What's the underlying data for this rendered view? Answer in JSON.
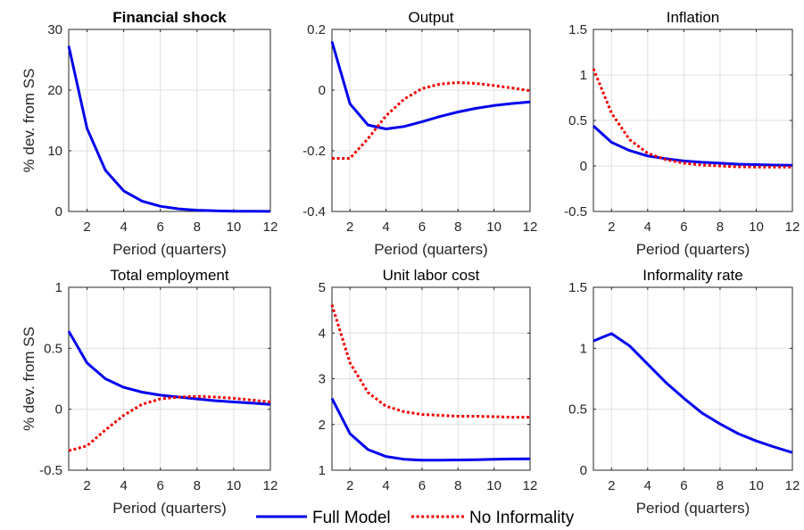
{
  "figure": {
    "legend": {
      "placement": "bottom-center",
      "entries": [
        {
          "label": "Full Model",
          "color": "#0000ee",
          "style": "solid"
        },
        {
          "label": "No Informality",
          "color": "#ee0000",
          "style": "dotted"
        }
      ]
    }
  },
  "chart_data": [
    {
      "type": "line",
      "title": "Financial shock",
      "title_bold": true,
      "xlabel": "Period (quarters)",
      "ylabel": "% dev. from SS",
      "xlim": [
        1,
        12
      ],
      "ylim": [
        0,
        30
      ],
      "xticks": [
        2,
        4,
        6,
        8,
        10,
        12
      ],
      "yticks": [
        0,
        10,
        20,
        30
      ],
      "ytick_labels": [
        "0",
        "10",
        "20",
        "30"
      ],
      "grid": true,
      "x": [
        1,
        2,
        3,
        4,
        5,
        6,
        7,
        8,
        9,
        10,
        11,
        12
      ],
      "series": [
        {
          "name": "Full Model",
          "color": "#0000ee",
          "style": "solid",
          "values": [
            27.3,
            13.7,
            6.8,
            3.4,
            1.7,
            0.85,
            0.43,
            0.21,
            0.11,
            0.05,
            0.03,
            0.01
          ]
        }
      ]
    },
    {
      "type": "line",
      "title": "Output",
      "title_bold": false,
      "xlabel": "Period (quarters)",
      "ylabel": "",
      "xlim": [
        1,
        12
      ],
      "ylim": [
        -0.4,
        0.2
      ],
      "xticks": [
        2,
        4,
        6,
        8,
        10,
        12
      ],
      "yticks": [
        -0.4,
        -0.2,
        0,
        0.2
      ],
      "ytick_labels": [
        "-0.4",
        "-0.2",
        "0",
        "0.2"
      ],
      "grid": true,
      "x": [
        1,
        2,
        3,
        4,
        5,
        6,
        7,
        8,
        9,
        10,
        11,
        12
      ],
      "series": [
        {
          "name": "Full Model",
          "color": "#0000ee",
          "style": "solid",
          "values": [
            0.16,
            -0.045,
            -0.115,
            -0.128,
            -0.12,
            -0.104,
            -0.087,
            -0.072,
            -0.06,
            -0.051,
            -0.044,
            -0.039
          ]
        },
        {
          "name": "No Informality",
          "color": "#ee0000",
          "style": "dotted",
          "values": [
            -0.225,
            -0.225,
            -0.16,
            -0.085,
            -0.03,
            0.005,
            0.02,
            0.025,
            0.022,
            0.015,
            0.007,
            -0.002
          ]
        }
      ]
    },
    {
      "type": "line",
      "title": "Inflation",
      "title_bold": false,
      "xlabel": "Period (quarters)",
      "ylabel": "",
      "xlim": [
        1,
        12
      ],
      "ylim": [
        -0.5,
        1.5
      ],
      "xticks": [
        2,
        4,
        6,
        8,
        10,
        12
      ],
      "yticks": [
        -0.5,
        0,
        0.5,
        1,
        1.5
      ],
      "ytick_labels": [
        "-0.5",
        "0",
        "0.5",
        "1",
        "1.5"
      ],
      "grid": true,
      "x": [
        1,
        2,
        3,
        4,
        5,
        6,
        7,
        8,
        9,
        10,
        11,
        12
      ],
      "series": [
        {
          "name": "Full Model",
          "color": "#0000ee",
          "style": "solid",
          "values": [
            0.44,
            0.26,
            0.17,
            0.11,
            0.08,
            0.055,
            0.04,
            0.03,
            0.02,
            0.015,
            0.01,
            0.008
          ]
        },
        {
          "name": "No Informality",
          "color": "#ee0000",
          "style": "dotted",
          "values": [
            1.07,
            0.58,
            0.29,
            0.14,
            0.07,
            0.03,
            0.01,
            0.0,
            -0.01,
            -0.012,
            -0.013,
            -0.013
          ]
        }
      ]
    },
    {
      "type": "line",
      "title": "Total employment",
      "title_bold": false,
      "xlabel": "Period (quarters)",
      "ylabel": "% dev. from SS",
      "xlim": [
        1,
        12
      ],
      "ylim": [
        -0.5,
        1
      ],
      "xticks": [
        2,
        4,
        6,
        8,
        10,
        12
      ],
      "yticks": [
        -0.5,
        0,
        0.5,
        1
      ],
      "ytick_labels": [
        "-0.5",
        "0",
        "0.5",
        "1"
      ],
      "grid": true,
      "x": [
        1,
        2,
        3,
        4,
        5,
        6,
        7,
        8,
        9,
        10,
        11,
        12
      ],
      "series": [
        {
          "name": "Full Model",
          "color": "#0000ee",
          "style": "solid",
          "values": [
            0.64,
            0.38,
            0.25,
            0.18,
            0.14,
            0.115,
            0.1,
            0.085,
            0.07,
            0.06,
            0.05,
            0.04
          ]
        },
        {
          "name": "No Informality",
          "color": "#ee0000",
          "style": "dotted",
          "values": [
            -0.34,
            -0.3,
            -0.17,
            -0.05,
            0.04,
            0.085,
            0.1,
            0.105,
            0.1,
            0.09,
            0.075,
            0.06
          ]
        }
      ]
    },
    {
      "type": "line",
      "title": "Unit labor cost",
      "title_bold": false,
      "xlabel": "",
      "ylabel": "",
      "xlim": [
        1,
        12
      ],
      "ylim": [
        1,
        5
      ],
      "xticks": [
        2,
        4,
        6,
        8,
        10,
        12
      ],
      "yticks": [
        1,
        2,
        3,
        4,
        5
      ],
      "ytick_labels": [
        "1",
        "2",
        "3",
        "4",
        "5"
      ],
      "grid": true,
      "x": [
        1,
        2,
        3,
        4,
        5,
        6,
        7,
        8,
        9,
        10,
        11,
        12
      ],
      "series": [
        {
          "name": "Full Model",
          "color": "#0000ee",
          "style": "solid",
          "values": [
            2.57,
            1.8,
            1.45,
            1.3,
            1.24,
            1.22,
            1.22,
            1.225,
            1.23,
            1.24,
            1.245,
            1.25
          ]
        },
        {
          "name": "No Informality",
          "color": "#ee0000",
          "style": "dotted",
          "values": [
            4.62,
            3.35,
            2.7,
            2.4,
            2.28,
            2.22,
            2.2,
            2.18,
            2.18,
            2.17,
            2.16,
            2.16
          ]
        }
      ]
    },
    {
      "type": "line",
      "title": "Informality rate",
      "title_bold": false,
      "xlabel": "Period (quarters)",
      "ylabel": "",
      "xlim": [
        1,
        12
      ],
      "ylim": [
        0,
        1.5
      ],
      "xticks": [
        2,
        4,
        6,
        8,
        10,
        12
      ],
      "yticks": [
        0,
        0.5,
        1,
        1.5
      ],
      "ytick_labels": [
        "0",
        "0.5",
        "1",
        "1.5"
      ],
      "grid": true,
      "x": [
        1,
        2,
        3,
        4,
        5,
        6,
        7,
        8,
        9,
        10,
        11,
        12
      ],
      "series": [
        {
          "name": "Full Model",
          "color": "#0000ee",
          "style": "solid",
          "values": [
            1.06,
            1.12,
            1.02,
            0.87,
            0.72,
            0.59,
            0.47,
            0.38,
            0.3,
            0.24,
            0.19,
            0.145
          ]
        }
      ]
    }
  ]
}
